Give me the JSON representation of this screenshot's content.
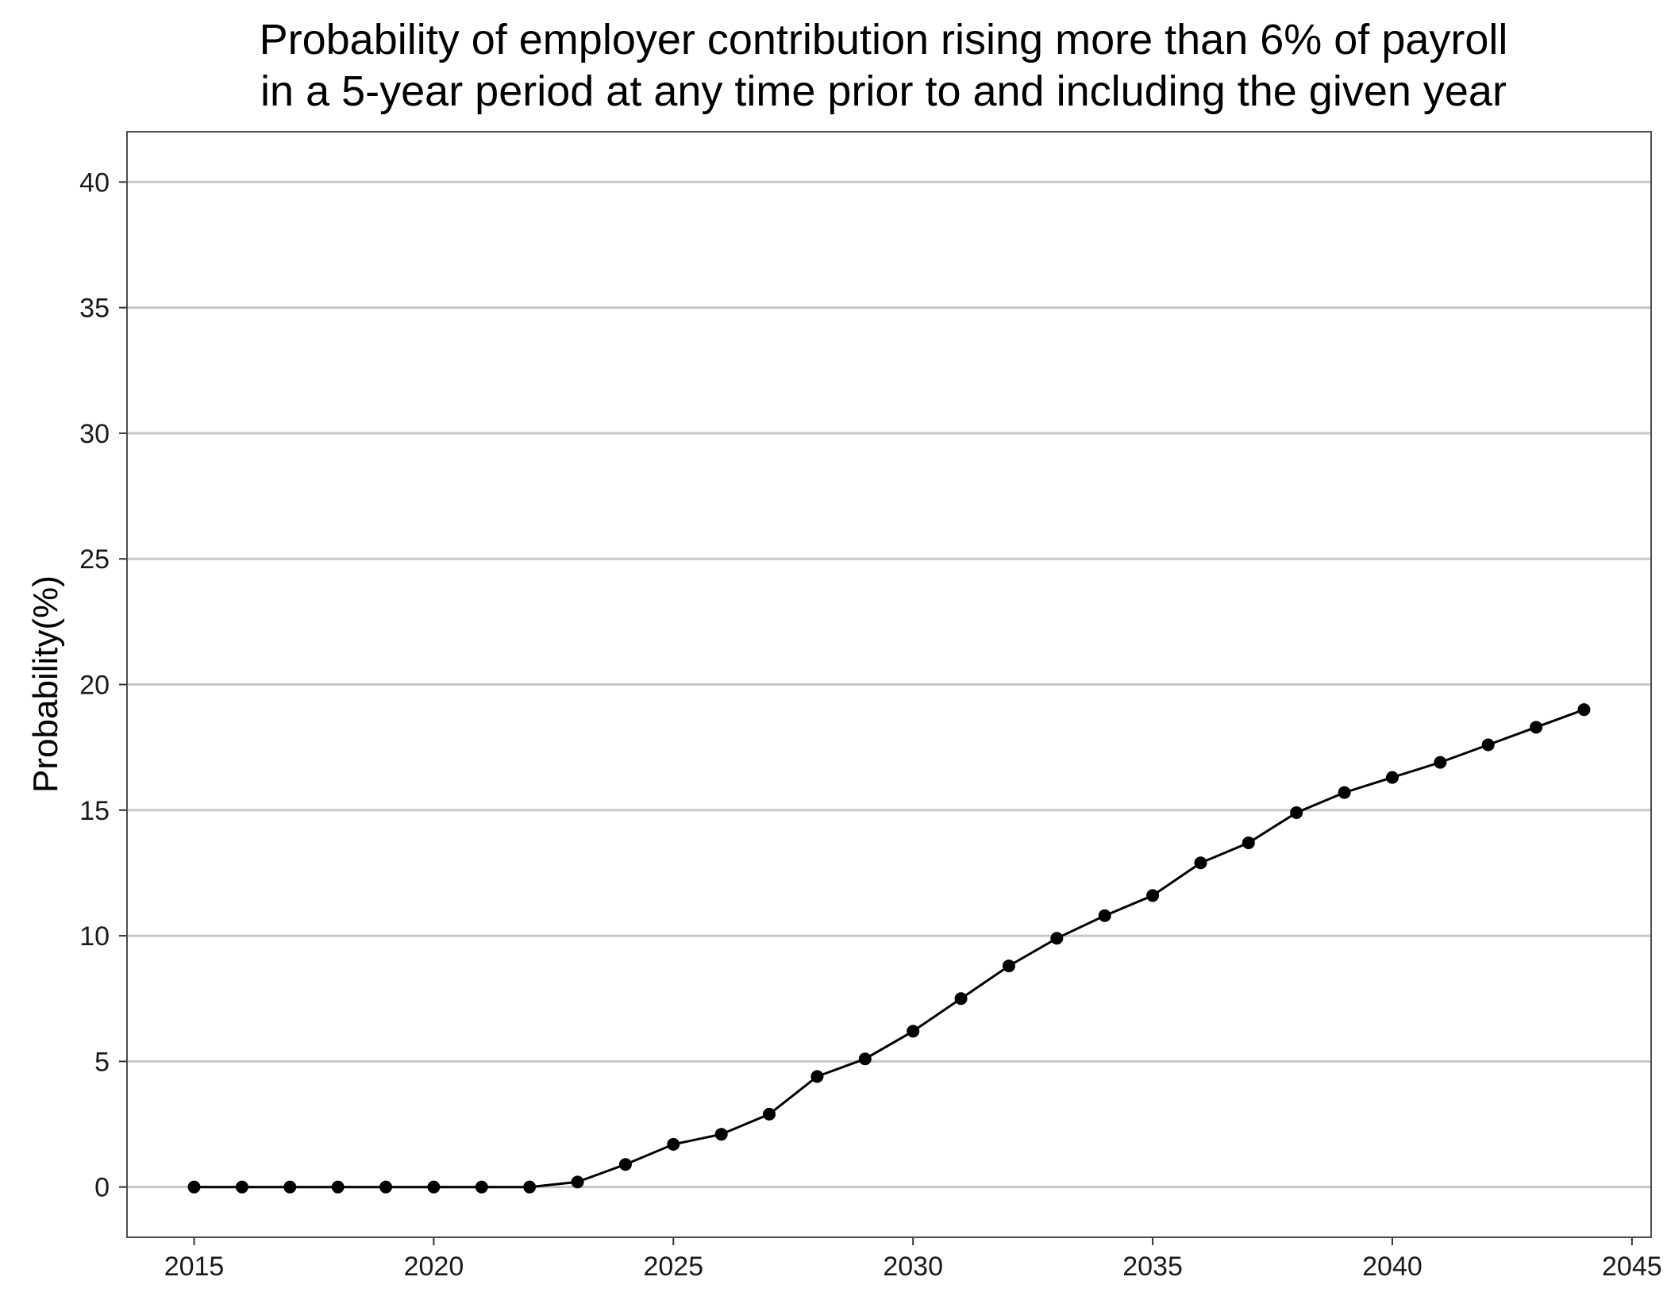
{
  "chart_data": {
    "type": "line",
    "title_lines": [
      "Probability of employer contribution rising more than 6% of payroll",
      "in a 5-year period at any time prior to and including the given year"
    ],
    "xlabel": "",
    "ylabel": "Probability(%)",
    "xlim": [
      2013.6,
      2045.4
    ],
    "ylim": [
      -2,
      42
    ],
    "xticks": [
      2015,
      2020,
      2025,
      2030,
      2035,
      2040,
      2045
    ],
    "yticks": [
      0,
      5,
      10,
      15,
      20,
      25,
      30,
      35,
      40
    ],
    "grid": "horizontal major",
    "legend": "none",
    "series": [
      {
        "color": "#000000",
        "x": [
          2015,
          2016,
          2017,
          2018,
          2019,
          2020,
          2021,
          2022,
          2023,
          2024,
          2025,
          2026,
          2027,
          2028,
          2029,
          2030,
          2031,
          2032,
          2033,
          2034,
          2035,
          2036,
          2037,
          2038,
          2039,
          2040,
          2041,
          2042,
          2043,
          2044
        ],
        "y": [
          0,
          0,
          0,
          0,
          0,
          0,
          0,
          0,
          0.2,
          0.9,
          1.7,
          2.1,
          2.9,
          4.4,
          5.1,
          6.2,
          7.5,
          8.8,
          9.9,
          10.8,
          11.6,
          12.9,
          13.7,
          14.9,
          15.7,
          16.3,
          16.9,
          17.6,
          18.3,
          19.0
        ]
      }
    ]
  }
}
